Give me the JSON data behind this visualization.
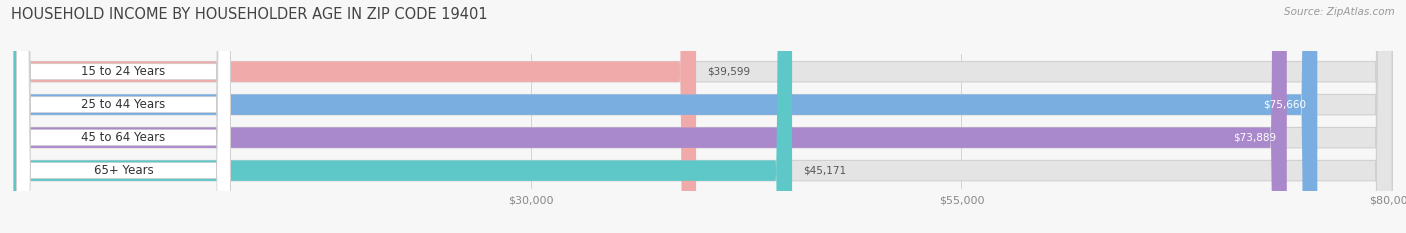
{
  "title": "HOUSEHOLD INCOME BY HOUSEHOLDER AGE IN ZIP CODE 19401",
  "source": "Source: ZipAtlas.com",
  "categories": [
    "15 to 24 Years",
    "25 to 44 Years",
    "45 to 64 Years",
    "65+ Years"
  ],
  "values": [
    39599,
    75660,
    73889,
    45171
  ],
  "labels": [
    "$39,599",
    "$75,660",
    "$73,889",
    "$45,171"
  ],
  "bar_colors": [
    "#f0aaaa",
    "#7aaee0",
    "#aa88cc",
    "#5ec8c8"
  ],
  "label_bg_color": "#ffffff",
  "background_color": "#f7f7f7",
  "bar_bg_color": "#e4e4e4",
  "xmin": 0,
  "xmax": 80000,
  "xticks": [
    30000,
    55000,
    80000
  ],
  "xticklabels": [
    "$30,000",
    "$55,000",
    "$80,000"
  ],
  "title_fontsize": 10.5,
  "source_fontsize": 7.5,
  "value_label_fontsize": 7.5,
  "cat_label_fontsize": 8.5,
  "tick_fontsize": 8,
  "bar_height": 0.62,
  "value_label_inside_color": "#ffffff",
  "value_label_outside_color": "#555555",
  "inside_threshold": 55000
}
